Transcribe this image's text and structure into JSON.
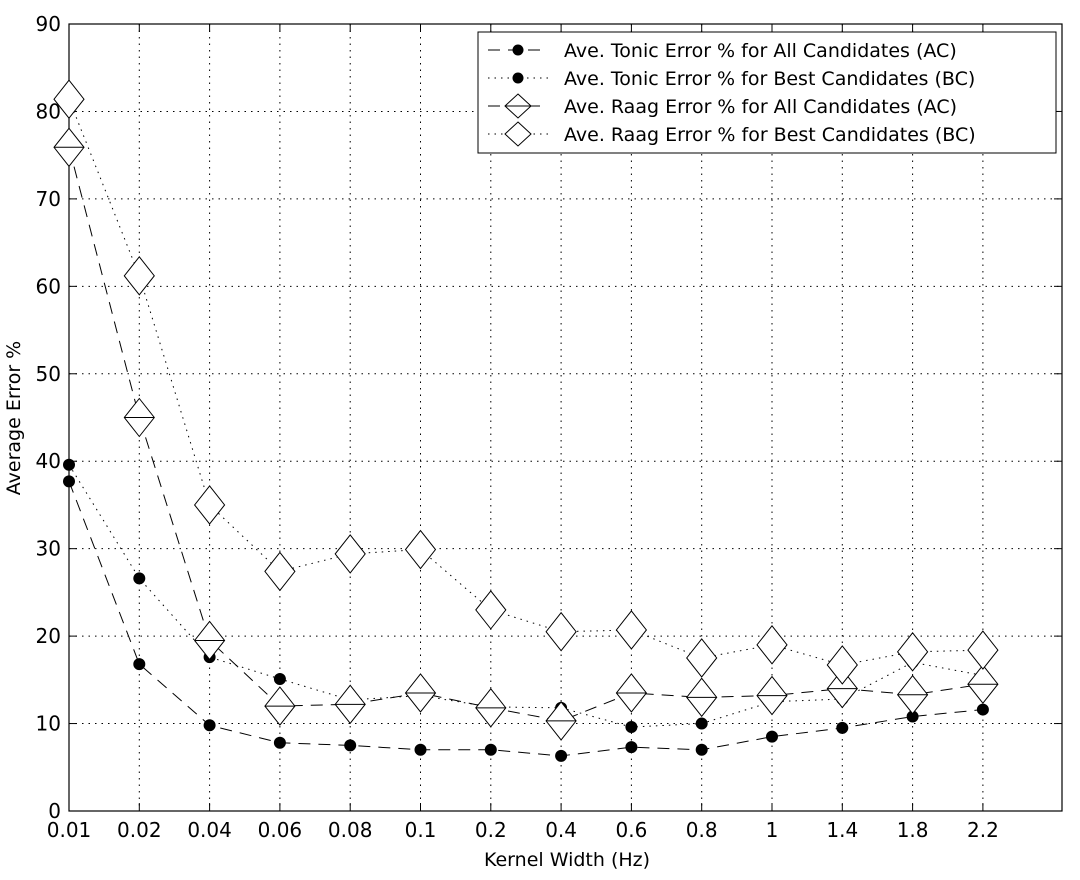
{
  "chart_data": {
    "type": "line",
    "xlabel": "Kernel Width (Hz)",
    "ylabel": "Average Error %",
    "categories": [
      "0.01",
      "0.02",
      "0.04",
      "0.06",
      "0.08",
      "0.1",
      "0.2",
      "0.4",
      "0.6",
      "0.8",
      "1",
      "1.4",
      "1.8",
      "2.2"
    ],
    "ylim": [
      0,
      90
    ],
    "yticks": [
      0,
      10,
      20,
      30,
      40,
      50,
      60,
      70,
      80,
      90
    ],
    "grid": true,
    "legend_position": "top-right",
    "series": [
      {
        "name": "Ave. Tonic Error % for All Candidates (AC)",
        "line_style": "dashed",
        "marker": "filled-circle",
        "values": [
          37.7,
          16.8,
          9.8,
          7.8,
          7.5,
          7.0,
          7.0,
          6.3,
          7.3,
          7.0,
          8.5,
          9.5,
          10.8,
          11.6
        ]
      },
      {
        "name": "Ave. Tonic Error % for Best Candidates (BC)",
        "line_style": "dotted",
        "marker": "filled-circle",
        "values": [
          39.6,
          26.6,
          17.6,
          15.1,
          12.7,
          13.2,
          11.9,
          11.8,
          9.6,
          10.0,
          12.5,
          12.8,
          17.0,
          15.5
        ]
      },
      {
        "name": "Ave. Raag Error % for All Candidates (AC)",
        "line_style": "dashed",
        "marker": "diamond-with-line",
        "values": [
          75.9,
          45.0,
          19.5,
          12.0,
          12.2,
          13.5,
          11.8,
          10.3,
          13.5,
          13.0,
          13.2,
          14.0,
          13.3,
          14.5
        ]
      },
      {
        "name": "Ave. Raag Error % for Best Candidates (BC)",
        "line_style": "dotted",
        "marker": "diamond",
        "values": [
          81.4,
          61.2,
          35.0,
          27.4,
          29.4,
          29.9,
          23.0,
          20.5,
          20.7,
          17.5,
          19.0,
          16.7,
          18.2,
          18.4
        ]
      }
    ]
  }
}
